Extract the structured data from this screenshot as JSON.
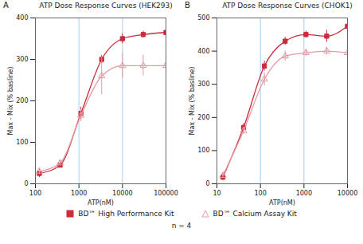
{
  "chart_data": [
    {
      "type": "line",
      "annotations": [
        "A"
      ],
      "title": "ATP Dose Response Curves (HEK293)",
      "x_label": "ATP(nM)",
      "y_label": "Max - Mix (% basline)",
      "log": "x",
      "grid": true,
      "xlim": [
        100,
        100000
      ],
      "xticks": [
        100,
        1000,
        10000,
        100000
      ],
      "ylim": [
        0,
        400
      ],
      "yticks": [
        0,
        100,
        200,
        300,
        400
      ],
      "x": [
        123,
        370,
        1111,
        3333,
        10000,
        30000,
        100000
      ],
      "series": [
        {
          "name": "BD™ High Performance Kit",
          "color": "#cc2b3b",
          "marker": "square",
          "values": [
            25,
            45,
            170,
            300,
            350,
            360,
            365
          ],
          "errors": [
            10,
            5,
            15,
            10,
            12,
            8,
            10
          ]
        },
        {
          "name": "BD™ Calcium Assay Kit",
          "color": "#e49aa3",
          "marker": "open-triangle",
          "values": [
            30,
            50,
            165,
            260,
            285,
            285,
            285
          ],
          "errors": [
            8,
            6,
            15,
            45,
            30,
            25,
            30
          ]
        }
      ]
    },
    {
      "type": "line",
      "annotations": [
        "B"
      ],
      "title": "ATP Dose Response Curves (CHOK1)",
      "x_label": "ATP(nM)",
      "y_label": "Max - Mix (% basline)",
      "log": "x",
      "grid": true,
      "xlim": [
        10,
        10000
      ],
      "xticks": [
        10,
        100,
        1000,
        10000
      ],
      "ylim": [
        0,
        500
      ],
      "yticks": [
        0,
        100,
        200,
        300,
        400,
        500
      ],
      "x": [
        13.7,
        41,
        123,
        370,
        1111,
        3333,
        10000
      ],
      "series": [
        {
          "name": "BD™ High Performance Kit",
          "color": "#cc2b3b",
          "marker": "square",
          "values": [
            20,
            170,
            355,
            430,
            450,
            445,
            475
          ],
          "errors": [
            10,
            12,
            15,
            12,
            10,
            18,
            15
          ]
        },
        {
          "name": "BD™ Calcium Assay Kit",
          "color": "#e49aa3",
          "marker": "open-triangle",
          "values": [
            25,
            160,
            315,
            385,
            395,
            400,
            395
          ],
          "errors": [
            8,
            10,
            20,
            15,
            10,
            12,
            15
          ]
        }
      ]
    }
  ],
  "caption": "n = 4"
}
